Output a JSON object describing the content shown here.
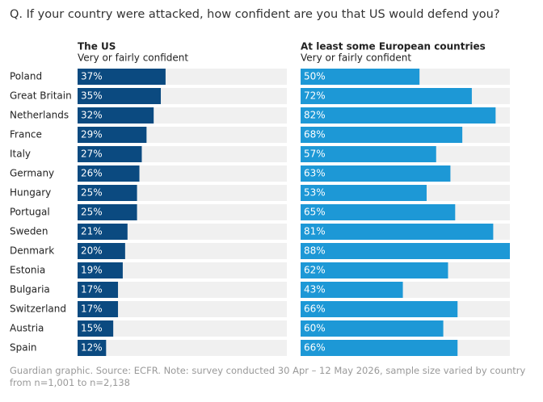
{
  "chart_data": {
    "type": "bar",
    "title": "Q. If your country were attacked, how confident are you that US would defend you?",
    "categories": [
      "Poland",
      "Great Britain",
      "Netherlands",
      "France",
      "Italy",
      "Germany",
      "Hungary",
      "Portugal",
      "Sweden",
      "Denmark",
      "Estonia",
      "Bulgaria",
      "Switzerland",
      "Austria",
      "Spain"
    ],
    "series": [
      {
        "name": "The US",
        "label": "Very or fairly confident",
        "color": "#0b4a80",
        "values": [
          37,
          35,
          32,
          29,
          27,
          26,
          25,
          25,
          21,
          20,
          19,
          17,
          17,
          15,
          12
        ],
        "value_labels": [
          "37%",
          "35%",
          "32%",
          "29%",
          "27%",
          "26%",
          "25%",
          "25%",
          "21%",
          "20%",
          "19%",
          "17%",
          "17%",
          "15%",
          "12%"
        ]
      },
      {
        "name": "At least some European countries",
        "label": "Very or fairly confident",
        "color": "#1d98d6",
        "values": [
          50,
          72,
          82,
          68,
          57,
          63,
          53,
          65,
          81,
          88,
          62,
          43,
          66,
          60,
          66
        ],
        "value_labels": [
          "50%",
          "72%",
          "82%",
          "68%",
          "57%",
          "63%",
          "53%",
          "65%",
          "81%",
          "88%",
          "62%",
          "43%",
          "66%",
          "60%",
          "66%"
        ]
      }
    ],
    "note": "Guardian graphic. Source: ECFR. Note: survey conducted 30 Apr – 12 May 2026, sample size varied by country from n=1,001 to n=2,138"
  }
}
